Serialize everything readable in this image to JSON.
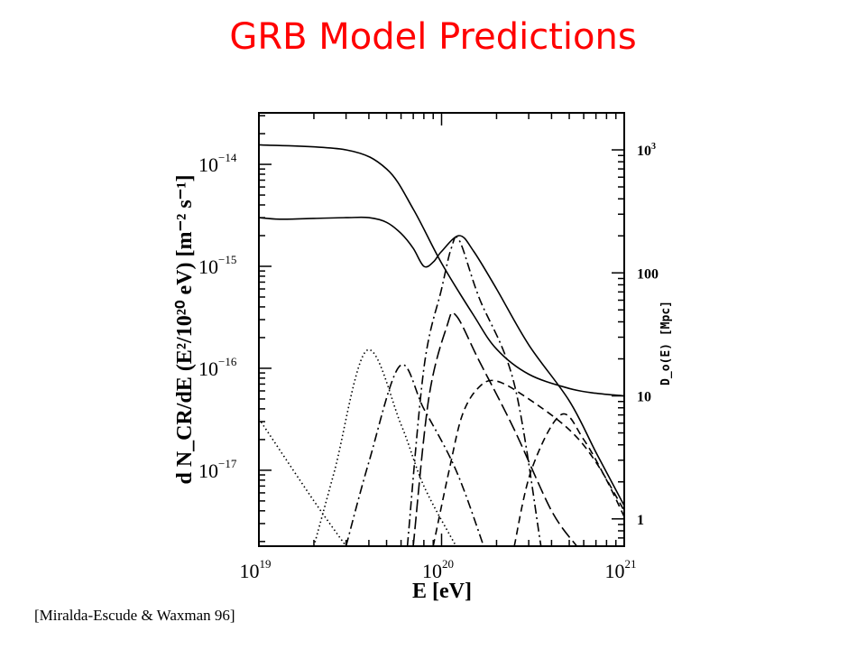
{
  "slide": {
    "title": "GRB Model Predictions",
    "title_color": "#ff0000",
    "citation": "[Miralda-Escude & Waxman 96]"
  },
  "chart_data": {
    "type": "line",
    "title": "",
    "xlabel": "E [eV]",
    "ylabel": "d N_CR/dE (E²/10²⁰ eV) [m⁻² s⁻¹]",
    "y2label": "D_o(E) [Mpc]",
    "xscale": "log",
    "yscale": "log",
    "xlim": [
      1e+19,
      1e+21
    ],
    "ylim": [
      1.8e-18,
      3.2e-14
    ],
    "y2lim": [
      0.6,
      2000
    ],
    "x_ticks": [
      {
        "base": "10",
        "exp": "19",
        "value": 1e+19
      },
      {
        "base": "10",
        "exp": "20",
        "value": 1e+20
      },
      {
        "base": "10",
        "exp": "21",
        "value": 1e+21
      }
    ],
    "y_ticks": [
      {
        "base": "10",
        "exp": "−14",
        "value": 1e-14
      },
      {
        "base": "10",
        "exp": "−15",
        "value": 1e-15
      },
      {
        "base": "10",
        "exp": "−16",
        "value": 1e-16
      },
      {
        "base": "10",
        "exp": "−17",
        "value": 1e-17
      }
    ],
    "y2_ticks": [
      {
        "base": "10",
        "exp": "3",
        "value": 1000
      },
      {
        "label": "100",
        "value": 100
      },
      {
        "label": "10",
        "value": 10
      },
      {
        "label": "1",
        "value": 1
      }
    ],
    "grid": false,
    "series": [
      {
        "style": "solid",
        "x": [
          1e+19,
          1.3e+19,
          2e+19,
          3e+19,
          4e+19,
          5e+19,
          6e+19,
          7e+19,
          8e+19,
          9e+19,
          1e+20,
          1.25e+20,
          1.5e+20,
          2e+20,
          3e+20,
          5e+20,
          7e+20,
          1e+21
        ],
        "y": [
          3e-15,
          2.9e-15,
          2.95e-15,
          3e-15,
          3e-15,
          2.7e-15,
          2.1e-15,
          1.5e-15,
          1e-15,
          1.1e-15,
          1.4e-15,
          2e-15,
          1.4e-15,
          6e-16,
          1.7e-16,
          4.8e-17,
          1.5e-17,
          4.5e-18
        ]
      },
      {
        "style": "solid",
        "axis": "y2",
        "x": [
          1e+19,
          3e+19,
          5e+19,
          7e+19,
          1e+20,
          1.5e+20,
          2e+20,
          3e+20,
          5e+20,
          7e+20,
          1e+21
        ],
        "y": [
          1100,
          1000,
          700,
          330,
          120,
          45,
          24,
          15,
          11.5,
          10.5,
          10
        ]
      },
      {
        "style": "dotted",
        "x": [
          1e+19,
          2e+19,
          3e+19
        ],
        "y": [
          3.2e-17,
          5e-18,
          1.8e-18
        ]
      },
      {
        "style": "dotted",
        "x": [
          2e+19,
          2.6e+19,
          3.9e+19,
          6e+19,
          8e+19,
          1.2e+20
        ],
        "y": [
          1.8e-18,
          1e-17,
          1.5e-16,
          2.8e-17,
          7e-18,
          1.8e-18
        ]
      },
      {
        "style": "dashdot",
        "x": [
          3e+19,
          4e+19,
          5.9e+19,
          8e+19,
          1.2e+20,
          1.7e+20
        ],
        "y": [
          1.8e-18,
          1.2e-17,
          1.05e-16,
          4e-17,
          1e-17,
          1.8e-18
        ]
      },
      {
        "style": "dashdot",
        "x": [
          6.5e+19,
          8e+19,
          1e+20,
          1.13e+20,
          1.25e+20,
          1.6e+20,
          2.5e+20,
          3.5e+20
        ],
        "y": [
          1.8e-18,
          1e-16,
          6e-16,
          1.5e-15,
          1.8e-15,
          5e-16,
          7e-17,
          1.8e-18
        ]
      },
      {
        "style": "longdash",
        "x": [
          7e+19,
          8.5e+19,
          1.07e+20,
          1.2e+20,
          1.6e+20,
          2.5e+20,
          4e+20,
          5.5e+20
        ],
        "y": [
          1.8e-18,
          5e-17,
          2.6e-16,
          3.3e-16,
          1.2e-16,
          2.5e-17,
          4e-18,
          1.8e-18
        ]
      },
      {
        "style": "dashed",
        "x": [
          9e+19,
          1.1e+20,
          1.3e+20,
          1.6e+20,
          2e+20,
          3e+20,
          5e+20,
          7e+20,
          1e+21
        ],
        "y": [
          1.8e-18,
          1e-17,
          3.5e-17,
          6.5e-17,
          7.5e-17,
          5e-17,
          2.5e-17,
          1.2e-17,
          4e-18
        ]
      },
      {
        "style": "dashed",
        "x": [
          2.5e+20,
          3.1e+20,
          4.5e+20,
          6e+20,
          8e+20,
          1e+21
        ],
        "y": [
          1.8e-18,
          1e-17,
          3.5e-17,
          2e-17,
          8e-18,
          3.5e-18
        ]
      }
    ]
  }
}
